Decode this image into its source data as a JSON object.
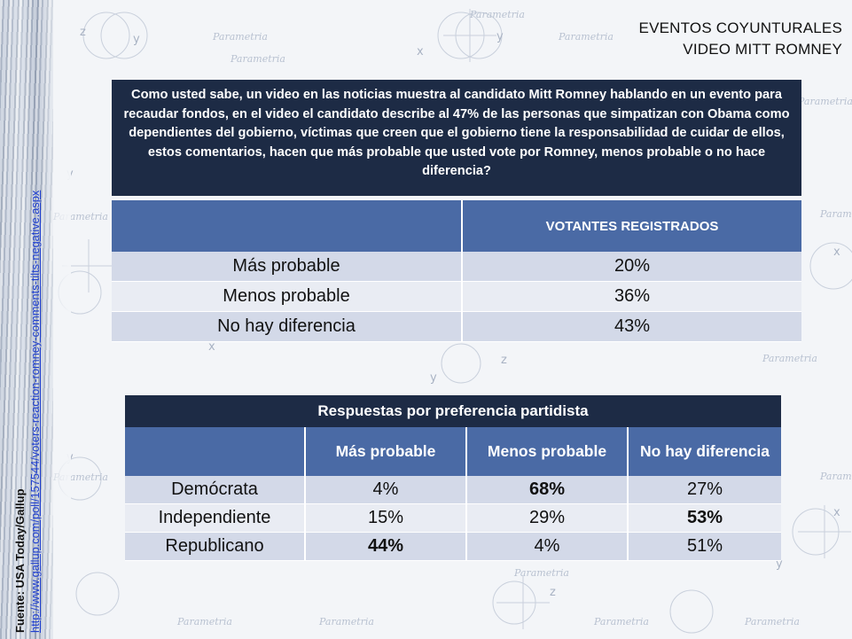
{
  "header": {
    "line1": "EVENTOS COYUNTURALES",
    "line2": "VIDEO MITT ROMNEY"
  },
  "question": "Como usted sabe, un video en las noticias muestra al candidato Mitt Romney hablando en un evento para recaudar fondos, en el video el candidato describe al 47% de las personas que simpatizan con Obama como dependientes del gobierno, víctimas que creen que el gobierno tiene la responsabilidad  de cuidar de ellos, estos comentarios, hacen que más probable que usted vote por Romney, menos probable o no hace diferencia?",
  "table1": {
    "column_header": "VOTANTES REGISTRADOS",
    "rows": [
      {
        "label": "Más probable",
        "value": "20%"
      },
      {
        "label": "Menos probable",
        "value": "36%"
      },
      {
        "label": "No hay diferencia",
        "value": "43%"
      }
    ]
  },
  "table2": {
    "title": "Respuestas por preferencia partidista",
    "headers": [
      "Más probable",
      "Menos probable",
      "No hay diferencia"
    ],
    "rows": [
      {
        "label": "Demócrata",
        "values": [
          "4%",
          "68%",
          "27%"
        ]
      },
      {
        "label": "Independiente",
        "values": [
          "15%",
          "29%",
          "53%"
        ]
      },
      {
        "label": "Republicano",
        "values": [
          "44%",
          "4%",
          "51%"
        ]
      }
    ]
  },
  "source": {
    "label": "Fuente: USA Today/Gallup",
    "url": "http://www.gallup.com/poll/157544/voters-reaction-romney-comments-tilts-negative.aspx"
  },
  "background": {
    "watermark_word": "Parametria"
  },
  "colors": {
    "dark_navy": "#1d2b45",
    "header_blue": "#4a6aa5",
    "row_light": "#d3d9e8",
    "row_lighter": "#e9ecf3",
    "link_blue": "#1f3fd0"
  }
}
